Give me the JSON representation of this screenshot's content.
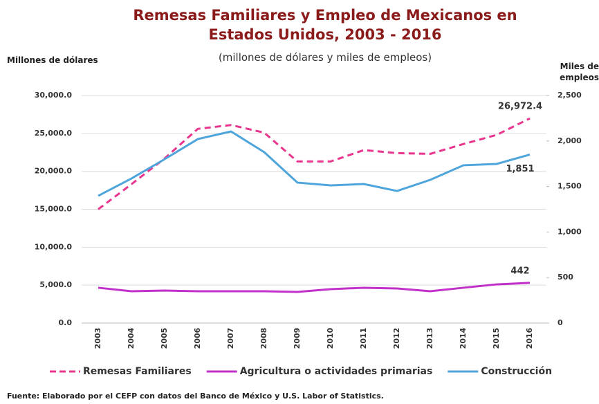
{
  "chart_data": {
    "type": "line",
    "title": "Remesas Familiares y Empleo de Mexicanos en Estados Unidos, 2003 - 2016",
    "subtitle": "(millones de dólares y miles de empleos)",
    "ylabel": "Millones de dólares",
    "y2label": "Miles de empleos",
    "source": "Fuente: Elaborado por el CEFP con datos del Banco de México y U.S. Labor of Statistics.",
    "categories": [
      "2003",
      "2004",
      "2005",
      "2006",
      "2007",
      "2008",
      "2009",
      "2010",
      "2011",
      "2012",
      "2013",
      "2014",
      "2015",
      "2016"
    ],
    "series": [
      {
        "name": "Remesas Familiares",
        "color": "#e8368f",
        "dashed": true,
        "values": [
          15000,
          18300,
          21700,
          25600,
          26100,
          25100,
          21300,
          21300,
          22800,
          22400,
          22300,
          23600,
          24800,
          26972.4
        ],
        "value_labels": [
          null,
          null,
          null,
          null,
          null,
          null,
          null,
          null,
          null,
          null,
          null,
          null,
          null,
          "26,972.4"
        ]
      },
      {
        "name": "Agricultura o actividades primarias",
        "color": "#c131c9",
        "axis": "y2",
        "values": [
          388,
          350,
          357,
          350,
          350,
          350,
          342,
          372,
          388,
          380,
          350,
          388,
          425,
          442
        ],
        "value_labels": [
          null,
          null,
          null,
          null,
          null,
          null,
          null,
          null,
          null,
          null,
          null,
          null,
          null,
          "442"
        ]
      },
      {
        "name": "Construcción",
        "color": "#4ea5dc",
        "axis": "y2",
        "values": [
          1398,
          1588,
          1800,
          2021,
          2105,
          1877,
          1543,
          1512,
          1527,
          1451,
          1573,
          1733,
          1748,
          1851
        ],
        "value_labels": [
          null,
          null,
          null,
          null,
          null,
          null,
          null,
          null,
          null,
          null,
          null,
          null,
          null,
          "1,851"
        ]
      }
    ],
    "ylim": [
      0,
      30000
    ],
    "yticks": [
      {
        "value": 0,
        "label": "0.0"
      },
      {
        "value": 5000,
        "label": "5,000.0"
      },
      {
        "value": 10000,
        "label": "10,000.0"
      },
      {
        "value": 15000,
        "label": "15,000.0"
      },
      {
        "value": 20000,
        "label": "20,000.0"
      },
      {
        "value": 25000,
        "label": "25,000.0"
      },
      {
        "value": 30000,
        "label": "30,000.0"
      }
    ],
    "y2lim": [
      0,
      2500
    ],
    "y2ticks": [
      0,
      500,
      {
        "value": 1000,
        "label": "1,000"
      },
      {
        "value": 1500,
        "label": "1,500"
      },
      {
        "value": 2000,
        "label": "2,000"
      },
      {
        "value": 2500,
        "label": "2,500"
      }
    ],
    "grid": true,
    "legend": "bottom"
  }
}
